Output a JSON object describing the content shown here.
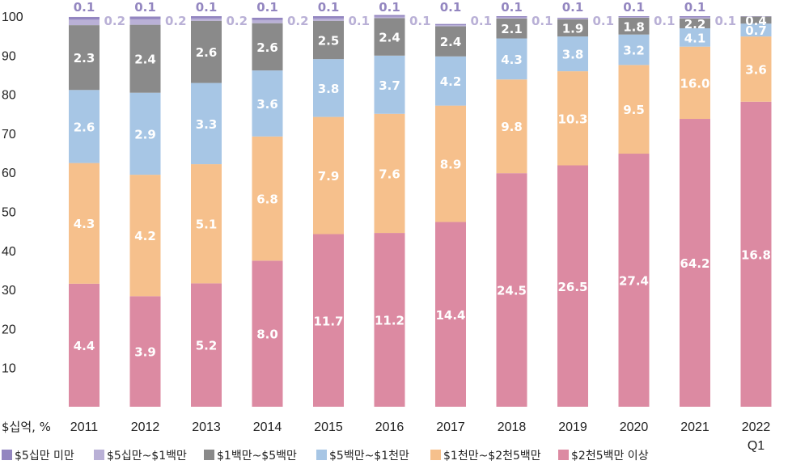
{
  "chart_data": {
    "type": "bar",
    "stacked": true,
    "unit_label": "$십억, %",
    "ylim": [
      0,
      100
    ],
    "yticks": [
      10,
      20,
      30,
      40,
      50,
      60,
      70,
      80,
      90,
      100
    ],
    "categories": [
      "2011",
      "2012",
      "2013",
      "2014",
      "2015",
      "2016",
      "2017",
      "2018",
      "2019",
      "2020",
      "2021",
      "2022"
    ],
    "category_sublabels": [
      "",
      "",
      "",
      "",
      "",
      "",
      "",
      "",
      "",
      "",
      "",
      "Q1"
    ],
    "legend_position": "bottom",
    "series": [
      {
        "name": "$2천5백만 이상",
        "color": "#dc8aa2",
        "label_color": "#ffffff",
        "share": [
          31.5,
          28.3,
          31.6,
          37.4,
          44.2,
          44.5,
          47.3,
          59.8,
          61.8,
          64.8,
          73.7,
          78.1
        ],
        "labels": [
          "4.4",
          "3.9",
          "5.2",
          "8.0",
          "11.7",
          "11.2",
          "14.4",
          "24.5",
          "26.5",
          "27.4",
          "64.2",
          "16.8"
        ]
      },
      {
        "name": "$1천만~$2천5백만",
        "color": "#f6c08c",
        "label_color": "#ffffff",
        "share": [
          30.9,
          31.1,
          30.5,
          31.8,
          30.0,
          30.5,
          29.8,
          24.0,
          24.1,
          22.7,
          18.5,
          16.7
        ],
        "labels": [
          "4.3",
          "4.2",
          "5.1",
          "6.8",
          "7.9",
          "7.6",
          "8.9",
          "9.8",
          "10.3",
          "9.5",
          "16.0",
          "3.6"
        ]
      },
      {
        "name": "$5백만~$1천만",
        "color": "#a7c6e5",
        "label_color": "#ffffff",
        "share": [
          18.7,
          21.0,
          20.8,
          16.9,
          14.8,
          14.9,
          12.6,
          10.5,
          8.9,
          7.8,
          4.7,
          3.3
        ],
        "labels": [
          "2.6",
          "2.9",
          "3.3",
          "3.6",
          "3.8",
          "3.7",
          "4.2",
          "4.3",
          "3.8",
          "3.2",
          "4.1",
          "0.7"
        ]
      },
      {
        "name": "$1백만~$5백만",
        "color": "#8a8a8a",
        "label_color": "#ffffff",
        "share": [
          16.6,
          17.4,
          15.9,
          12.1,
          9.8,
          9.6,
          7.7,
          5.1,
          4.4,
          4.3,
          2.5,
          1.8
        ],
        "labels": [
          "2.3",
          "2.4",
          "2.6",
          "2.6",
          "2.5",
          "2.4",
          "2.4",
          "2.1",
          "1.9",
          "1.8",
          "2.2",
          "0.4"
        ]
      },
      {
        "name": "$5십만~$1백만",
        "color": "#b9b0d6",
        "label_color": "#b9b0d6",
        "share": [
          1.4,
          1.4,
          0.6,
          0.8,
          0.6,
          0.4,
          0.3,
          0.3,
          0.2,
          0.2,
          0.3,
          0.05
        ],
        "labels": [
          "0.2",
          "0.2",
          "0.2",
          "0.2",
          "0.1",
          "0.1",
          "0.1",
          "0.1",
          "0.1",
          "0.1",
          "0.1",
          ""
        ]
      },
      {
        "name": "$5십만 미만",
        "color": "#9386c0",
        "label_color": "#9386c0",
        "share": [
          0.7,
          0.7,
          0.6,
          0.6,
          0.6,
          0.4,
          0.3,
          0.3,
          0.2,
          0.2,
          0.3,
          0.05
        ],
        "labels": [
          "0.1",
          "0.1",
          "0.1",
          "0.1",
          "0.1",
          "0.1",
          "0.1",
          "0.1",
          "0.1",
          "0.1",
          "0.1",
          ""
        ]
      }
    ]
  }
}
